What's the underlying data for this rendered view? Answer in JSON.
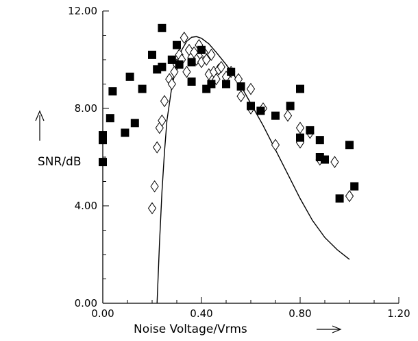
{
  "chart_data": {
    "type": "scatter",
    "xlabel": "Noise Voltage/Vrms",
    "ylabel": "SNR/dB",
    "xlim": [
      0,
      1.2
    ],
    "ylim": [
      0,
      12
    ],
    "x_ticks": [
      "0.00",
      "0.40",
      "0.80",
      "1.20"
    ],
    "y_ticks": [
      "0.00",
      "4.00",
      "8.00",
      "12.00"
    ],
    "x_tick_values": [
      0,
      0.4,
      0.8,
      1.2
    ],
    "y_tick_values": [
      0,
      4,
      8,
      12
    ],
    "grid": false,
    "series": [
      {
        "marker": "filled-square",
        "color": "#000000",
        "points": [
          [
            0.0,
            6.9
          ],
          [
            0.0,
            6.7
          ],
          [
            0.0,
            5.8
          ],
          [
            0.03,
            7.6
          ],
          [
            0.04,
            8.7
          ],
          [
            0.09,
            7.0
          ],
          [
            0.11,
            9.3
          ],
          [
            0.13,
            7.4
          ],
          [
            0.16,
            8.8
          ],
          [
            0.2,
            10.2
          ],
          [
            0.22,
            9.6
          ],
          [
            0.24,
            9.7
          ],
          [
            0.24,
            11.3
          ],
          [
            0.28,
            10.0
          ],
          [
            0.3,
            10.6
          ],
          [
            0.31,
            9.8
          ],
          [
            0.36,
            9.9
          ],
          [
            0.36,
            9.1
          ],
          [
            0.4,
            10.4
          ],
          [
            0.42,
            8.8
          ],
          [
            0.44,
            9.0
          ],
          [
            0.5,
            9.0
          ],
          [
            0.52,
            9.5
          ],
          [
            0.56,
            8.9
          ],
          [
            0.6,
            8.1
          ],
          [
            0.64,
            7.9
          ],
          [
            0.7,
            7.7
          ],
          [
            0.76,
            8.1
          ],
          [
            0.8,
            8.8
          ],
          [
            0.8,
            6.8
          ],
          [
            0.84,
            7.1
          ],
          [
            0.88,
            6.7
          ],
          [
            0.88,
            6.0
          ],
          [
            0.9,
            5.9
          ],
          [
            0.96,
            4.3
          ],
          [
            1.0,
            6.5
          ],
          [
            1.02,
            4.8
          ]
        ]
      },
      {
        "marker": "open-diamond",
        "color": "#000000",
        "points": [
          [
            0.2,
            3.9
          ],
          [
            0.21,
            4.8
          ],
          [
            0.22,
            6.4
          ],
          [
            0.23,
            7.2
          ],
          [
            0.24,
            7.5
          ],
          [
            0.25,
            8.3
          ],
          [
            0.27,
            9.2
          ],
          [
            0.28,
            9.0
          ],
          [
            0.29,
            9.5
          ],
          [
            0.3,
            9.8
          ],
          [
            0.31,
            10.2
          ],
          [
            0.32,
            10.0
          ],
          [
            0.33,
            10.9
          ],
          [
            0.34,
            9.5
          ],
          [
            0.35,
            10.4
          ],
          [
            0.36,
            10.1
          ],
          [
            0.37,
            10.3
          ],
          [
            0.38,
            10.0
          ],
          [
            0.39,
            10.6
          ],
          [
            0.4,
            9.9
          ],
          [
            0.41,
            10.3
          ],
          [
            0.42,
            10.0
          ],
          [
            0.43,
            9.4
          ],
          [
            0.44,
            10.2
          ],
          [
            0.45,
            9.5
          ],
          [
            0.46,
            9.2
          ],
          [
            0.47,
            9.6
          ],
          [
            0.48,
            9.7
          ],
          [
            0.5,
            9.3
          ],
          [
            0.52,
            9.5
          ],
          [
            0.55,
            9.2
          ],
          [
            0.56,
            8.5
          ],
          [
            0.6,
            8.8
          ],
          [
            0.6,
            8.0
          ],
          [
            0.65,
            8.0
          ],
          [
            0.7,
            6.5
          ],
          [
            0.75,
            7.7
          ],
          [
            0.8,
            7.2
          ],
          [
            0.8,
            6.6
          ],
          [
            0.84,
            7.0
          ],
          [
            0.88,
            5.9
          ],
          [
            0.94,
            5.8
          ],
          [
            1.0,
            4.4
          ]
        ]
      },
      {
        "marker": "line",
        "color": "#000000",
        "points": [
          [
            0.22,
            0.0
          ],
          [
            0.23,
            2.5
          ],
          [
            0.24,
            4.6
          ],
          [
            0.25,
            6.2
          ],
          [
            0.26,
            7.5
          ],
          [
            0.28,
            8.9
          ],
          [
            0.3,
            9.8
          ],
          [
            0.32,
            10.4
          ],
          [
            0.34,
            10.75
          ],
          [
            0.36,
            10.92
          ],
          [
            0.38,
            10.95
          ],
          [
            0.4,
            10.88
          ],
          [
            0.43,
            10.65
          ],
          [
            0.46,
            10.3
          ],
          [
            0.5,
            9.8
          ],
          [
            0.55,
            9.1
          ],
          [
            0.6,
            8.2
          ],
          [
            0.65,
            7.3
          ],
          [
            0.7,
            6.3
          ],
          [
            0.75,
            5.3
          ],
          [
            0.8,
            4.3
          ],
          [
            0.85,
            3.4
          ],
          [
            0.9,
            2.7
          ],
          [
            0.95,
            2.2
          ],
          [
            1.0,
            1.8
          ]
        ]
      }
    ]
  }
}
